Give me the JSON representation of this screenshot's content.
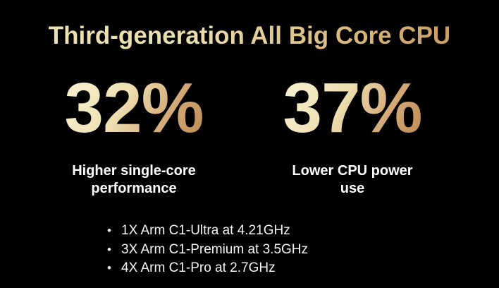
{
  "slide": {
    "title": "Third-generation All Big Core CPU",
    "bullet_char": "•",
    "stats": [
      {
        "value": "32%",
        "label_line1": "Higher single-core",
        "label_line2": "performance"
      },
      {
        "value": "37%",
        "label_line1": "Lower CPU power",
        "label_line2": "use"
      }
    ],
    "bullets": [
      "1X Arm C1-Ultra at 4.21GHz",
      "3X Arm C1-Premium at 3.5GHz",
      "4X Arm C1-Pro at 2.7GHz"
    ],
    "colors": {
      "background": "#000000",
      "gold_light": "#f2e6ba",
      "gold_dark": "#c08c54",
      "label_text": "#ffffff"
    }
  }
}
